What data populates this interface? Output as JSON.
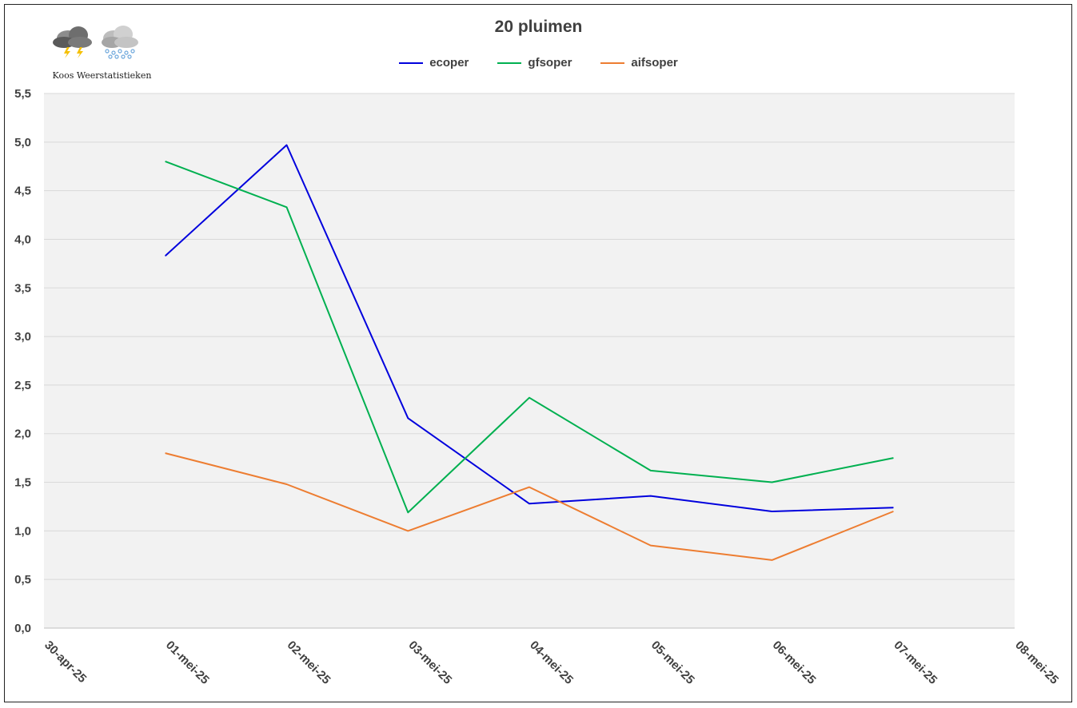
{
  "logo": {
    "text": "Koos Weerstatistieken",
    "icons": [
      "thunderstorm-cloud-icon",
      "hail-cloud-icon"
    ]
  },
  "chart_data": {
    "type": "line",
    "title": "20 pluimen",
    "xlabel": "",
    "ylabel": "",
    "x": [
      "30-apr-25",
      "01-mei-25",
      "02-mei-25",
      "03-mei-25",
      "04-mei-25",
      "05-mei-25",
      "06-mei-25",
      "07-mei-25",
      "08-mei-25"
    ],
    "ylim": [
      0,
      5.5
    ],
    "yticks": [
      "0,0",
      "0,5",
      "1,0",
      "1,5",
      "2,0",
      "2,5",
      "3,0",
      "3,5",
      "4,0",
      "4,5",
      "5,0",
      "5,5"
    ],
    "grid": true,
    "legend_position": "top-center",
    "series": [
      {
        "name": "ecoper",
        "color": "#0000dd",
        "values": [
          null,
          3.83,
          4.97,
          2.16,
          1.28,
          1.36,
          1.2,
          1.24,
          null
        ]
      },
      {
        "name": "gfsoper",
        "color": "#00b050",
        "values": [
          null,
          4.8,
          4.33,
          1.19,
          2.37,
          1.62,
          1.5,
          1.75,
          null
        ]
      },
      {
        "name": "aifsoper",
        "color": "#ed7d31",
        "values": [
          null,
          1.8,
          1.48,
          1.0,
          1.45,
          0.85,
          0.7,
          1.2,
          null
        ]
      }
    ],
    "plot_background": "#f2f2f2",
    "grid_color": "#d9d9d9"
  }
}
